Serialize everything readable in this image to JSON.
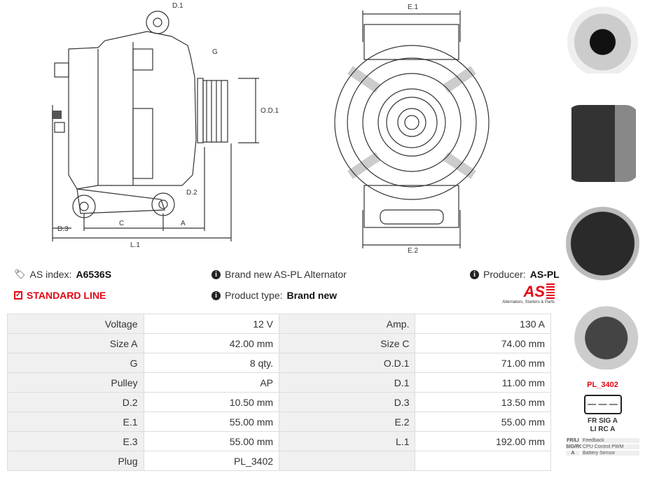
{
  "drawing": {
    "side_labels": {
      "d1": "D.1",
      "g": "G",
      "od1": "O.D.1",
      "d2": "D.2",
      "d3": "D.3",
      "c": "C",
      "a": "A",
      "l1": "L.1"
    },
    "front_labels": {
      "e1": "E.1",
      "e2": "E.2"
    }
  },
  "info": {
    "as_index_label": "AS index:",
    "as_index_value": "A6536S",
    "standard_line": "STANDARD LINE",
    "description": "Brand new AS-PL Alternator",
    "product_type_label": "Product type:",
    "product_type_value": "Brand new",
    "producer_label": "Producer:",
    "producer_value": "AS-PL",
    "logo_text": "AS",
    "logo_tagline": "Alternators, Starters & Parts",
    "accent_color": "#e30613"
  },
  "specs": [
    {
      "l1": "Voltage",
      "v1": "12 V",
      "l2": "Amp.",
      "v2": "130 A"
    },
    {
      "l1": "Size A",
      "v1": "42.00 mm",
      "l2": "Size C",
      "v2": "74.00 mm"
    },
    {
      "l1": "G",
      "v1": "8 qty.",
      "l2": "O.D.1",
      "v2": "71.00 mm"
    },
    {
      "l1": "Pulley",
      "v1": "AP",
      "l2": "D.1",
      "v2": "11.00 mm"
    },
    {
      "l1": "D.2",
      "v1": "10.50 mm",
      "l2": "D.3",
      "v2": "13.50 mm"
    },
    {
      "l1": "E.1",
      "v1": "55.00 mm",
      "l2": "E.2",
      "v2": "55.00 mm"
    },
    {
      "l1": "E.3",
      "v1": "55.00 mm",
      "l2": "L.1",
      "v2": "192.00 mm"
    },
    {
      "l1": "Plug",
      "v1": "PL_3402",
      "l2": "",
      "v2": ""
    }
  ],
  "plug": {
    "title": "PL_3402",
    "pins_top": [
      "FR",
      "SIG",
      "A"
    ],
    "pins_bottom": [
      "LI",
      "RC",
      "A"
    ],
    "legend": [
      {
        "code": "FR/LI",
        "desc": "Feedback"
      },
      {
        "code": "SIG/RC",
        "desc": "CPU Control PWM"
      },
      {
        "code": "A",
        "desc": "Battery Sensor"
      }
    ]
  }
}
